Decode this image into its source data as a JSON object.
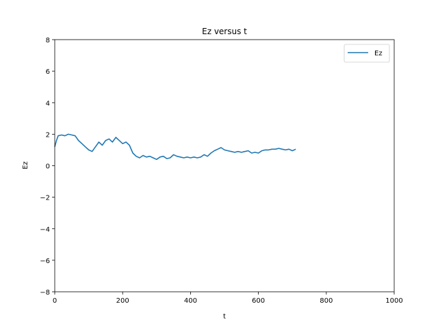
{
  "chart_data": {
    "type": "line",
    "title": "Ez versus t",
    "xlabel": "t",
    "ylabel": "Ez",
    "xlim": [
      0,
      1000
    ],
    "ylim": [
      -8,
      8
    ],
    "xticks": [
      0,
      200,
      400,
      600,
      800,
      1000
    ],
    "yticks": [
      -8,
      -6,
      -4,
      -2,
      0,
      2,
      4,
      6,
      8
    ],
    "xtick_labels": [
      "0",
      "200",
      "400",
      "600",
      "800",
      "1000"
    ],
    "ytick_labels": [
      "−8",
      "−6",
      "−4",
      "−2",
      "0",
      "2",
      "4",
      "6",
      "8"
    ],
    "grid": false,
    "legend": "top-right",
    "series": [
      {
        "name": "Ez",
        "color": "#1f77b4",
        "x": [
          0,
          5,
          10,
          20,
          30,
          40,
          50,
          60,
          70,
          80,
          90,
          100,
          110,
          120,
          130,
          140,
          150,
          160,
          170,
          180,
          190,
          200,
          210,
          220,
          230,
          240,
          250,
          260,
          270,
          280,
          290,
          300,
          310,
          320,
          330,
          340,
          350,
          360,
          370,
          380,
          390,
          400,
          410,
          420,
          430,
          440,
          450,
          460,
          470,
          480,
          490,
          500,
          510,
          520,
          530,
          540,
          550,
          560,
          570,
          580,
          590,
          600,
          610,
          620,
          630,
          640,
          650,
          660,
          670,
          680,
          690,
          700,
          710
        ],
        "y": [
          1.2,
          1.6,
          1.9,
          1.95,
          1.9,
          2.0,
          1.95,
          1.9,
          1.6,
          1.4,
          1.2,
          1.0,
          0.9,
          1.2,
          1.5,
          1.3,
          1.6,
          1.7,
          1.5,
          1.8,
          1.6,
          1.4,
          1.5,
          1.3,
          0.8,
          0.6,
          0.5,
          0.65,
          0.55,
          0.6,
          0.5,
          0.4,
          0.55,
          0.6,
          0.45,
          0.5,
          0.7,
          0.6,
          0.55,
          0.5,
          0.55,
          0.5,
          0.55,
          0.5,
          0.55,
          0.7,
          0.6,
          0.8,
          0.95,
          1.05,
          1.15,
          1.0,
          0.95,
          0.9,
          0.85,
          0.9,
          0.85,
          0.9,
          0.95,
          0.8,
          0.85,
          0.8,
          0.95,
          1.0,
          1.0,
          1.05,
          1.05,
          1.1,
          1.05,
          1.0,
          1.05,
          0.95,
          1.05
        ]
      }
    ]
  }
}
